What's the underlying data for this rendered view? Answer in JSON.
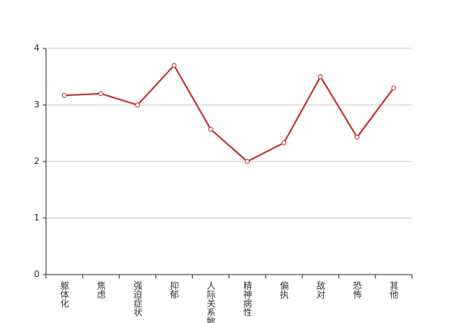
{
  "chart_data": {
    "type": "line",
    "categories": [
      "躯体化",
      "焦虑",
      "强迫症状",
      "抑郁",
      "人际关系敏感",
      "精神病性",
      "偏执",
      "敌对",
      "恐怖",
      "其他"
    ],
    "values": [
      3.17,
      3.2,
      3.0,
      3.7,
      2.57,
      2.0,
      2.33,
      3.5,
      2.43,
      3.3
    ],
    "color": "#c23531",
    "ylim": [
      0,
      4
    ],
    "yticks": [
      0,
      1,
      2,
      3,
      4
    ],
    "grid": true
  }
}
